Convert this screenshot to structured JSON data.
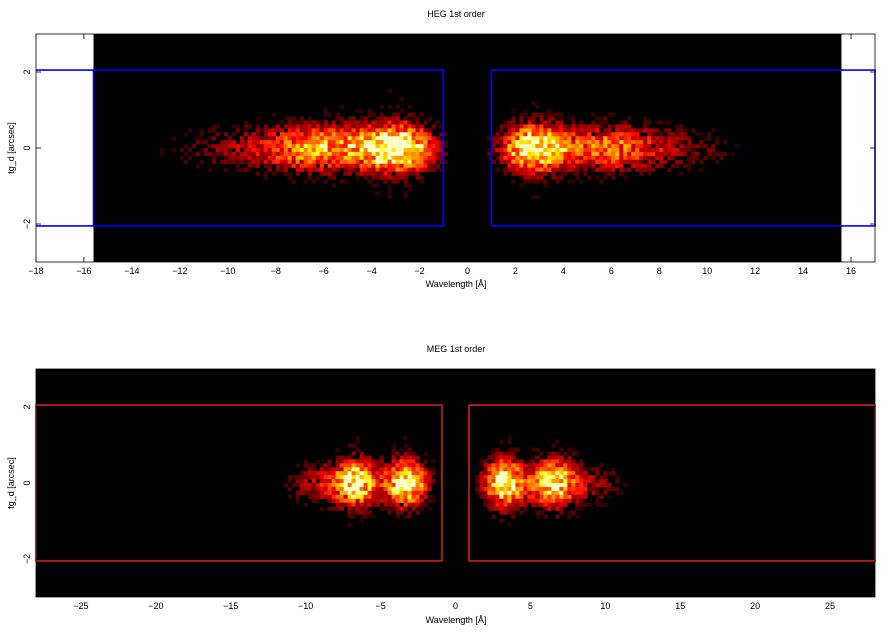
{
  "chart_data": [
    {
      "type": "heatmap",
      "title": "HEG 1st order",
      "xlabel": "Wavelength [Å]",
      "ylabel": "tg_d [arcsec]",
      "xlim": [
        -18,
        17
      ],
      "ylim": [
        -3,
        3
      ],
      "data_xlim": [
        -15.6,
        15.6
      ],
      "xticks": [
        -18,
        -16,
        -14,
        -12,
        -10,
        -8,
        -6,
        -4,
        -2,
        0,
        2,
        4,
        6,
        8,
        10,
        12,
        14,
        16
      ],
      "yticks": [
        -2,
        0,
        2
      ],
      "colormap": "heat",
      "background": "#000000",
      "region_color": "#0000ff",
      "regions": [
        {
          "x": [
            -15.6,
            -1.0
          ],
          "y": [
            -2.05,
            2.05
          ]
        },
        {
          "x": [
            1.0,
            17.0
          ],
          "y": [
            -2.05,
            2.05
          ]
        }
      ],
      "gap": [
        -0.9,
        0.9
      ],
      "peaks": [
        {
          "x": -2.9,
          "width": 1.0,
          "strength": 1.0
        },
        {
          "x": -5.8,
          "width": 1.6,
          "strength": 0.55
        },
        {
          "x": -8.5,
          "width": 2.5,
          "strength": 0.22
        },
        {
          "x": 2.8,
          "width": 0.9,
          "strength": 1.0
        },
        {
          "x": 5.8,
          "width": 1.3,
          "strength": 0.5
        },
        {
          "x": 8.5,
          "width": 1.8,
          "strength": 0.18
        }
      ]
    },
    {
      "type": "heatmap",
      "title": "MEG 1st order",
      "xlabel": "Wavelength [Å]",
      "ylabel": "tg_d [arcsec]",
      "xlim": [
        -28,
        28
      ],
      "ylim": [
        -3,
        3
      ],
      "data_xlim": [
        -28,
        28
      ],
      "xticks": [
        -25,
        -20,
        -15,
        -10,
        -5,
        0,
        5,
        10,
        15,
        20,
        25
      ],
      "yticks": [
        -2,
        0,
        2
      ],
      "colormap": "heat",
      "background": "#000000",
      "region_color": "#cc1f1f",
      "regions": [
        {
          "x": [
            -28,
            -0.9
          ],
          "y": [
            -2.05,
            2.05
          ]
        },
        {
          "x": [
            0.9,
            28
          ],
          "y": [
            -2.05,
            2.05
          ]
        }
      ],
      "gap": [
        -0.9,
        0.9
      ],
      "peaks": [
        {
          "x": -3.3,
          "width": 0.9,
          "strength": 1.0
        },
        {
          "x": -6.6,
          "width": 1.0,
          "strength": 0.85
        },
        {
          "x": -9.0,
          "width": 1.5,
          "strength": 0.25
        },
        {
          "x": 3.3,
          "width": 0.9,
          "strength": 1.0
        },
        {
          "x": 6.5,
          "width": 1.0,
          "strength": 0.85
        },
        {
          "x": 9.0,
          "width": 1.5,
          "strength": 0.2
        }
      ]
    }
  ]
}
